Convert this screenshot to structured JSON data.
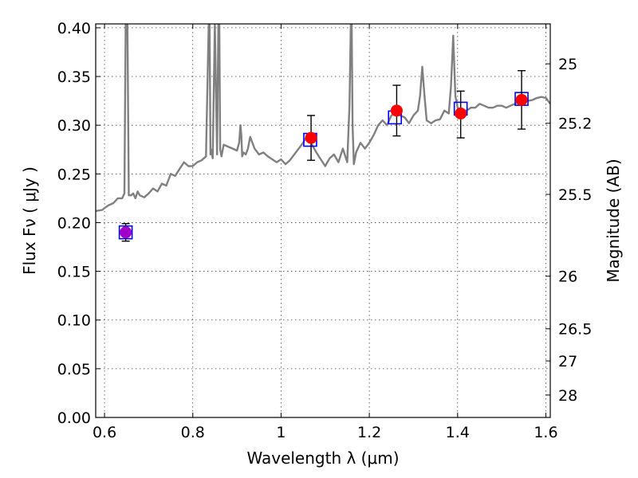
{
  "chart_data": {
    "type": "scatter",
    "xlabel": "Wavelength  λ (μm)",
    "ylabel": "Flux  Fν  ( μJy )",
    "y2label": "Magnitude (AB)",
    "xlim": [
      0.58,
      1.61
    ],
    "ylim": [
      0.0,
      0.404
    ],
    "grid": true,
    "x_ticks": [
      0.6,
      0.8,
      1.0,
      1.2,
      1.4,
      1.6
    ],
    "x_tick_labels": [
      "0.6",
      "0.8",
      "1",
      "1.2",
      "1.4",
      "1.6"
    ],
    "y_ticks": [
      0.0,
      0.05,
      0.1,
      0.15,
      0.2,
      0.25,
      0.3,
      0.35,
      0.4
    ],
    "y_tick_labels": [
      "0.00",
      "0.05",
      "0.10",
      "0.15",
      "0.20",
      "0.25",
      "0.30",
      "0.35",
      "0.40"
    ],
    "magnitude_ticks": [
      {
        "label": "25",
        "flux": 0.363
      },
      {
        "label": "25.2",
        "flux": 0.302
      },
      {
        "label": "25.5",
        "flux": 0.229
      },
      {
        "label": "26",
        "flux": 0.145
      },
      {
        "label": "26.5",
        "flux": 0.091
      },
      {
        "label": "27",
        "flux": 0.058
      },
      {
        "label": "28",
        "flux": 0.023
      }
    ],
    "series": [
      {
        "kind": "line",
        "color": "#808080",
        "x": [
          0.58,
          0.595,
          0.6,
          0.61,
          0.62,
          0.63,
          0.64,
          0.645,
          0.648,
          0.65,
          0.652,
          0.655,
          0.66,
          0.665,
          0.67,
          0.675,
          0.68,
          0.69,
          0.7,
          0.71,
          0.72,
          0.73,
          0.74,
          0.75,
          0.76,
          0.77,
          0.78,
          0.79,
          0.8,
          0.81,
          0.82,
          0.83,
          0.836,
          0.838,
          0.84,
          0.842,
          0.845,
          0.85,
          0.855,
          0.858,
          0.86,
          0.862,
          0.865,
          0.87,
          0.88,
          0.89,
          0.9,
          0.905,
          0.908,
          0.91,
          0.912,
          0.915,
          0.92,
          0.925,
          0.93,
          0.94,
          0.95,
          0.96,
          0.97,
          0.98,
          0.99,
          1.0,
          1.01,
          1.02,
          1.03,
          1.04,
          1.05,
          1.06,
          1.07,
          1.08,
          1.09,
          1.1,
          1.11,
          1.12,
          1.13,
          1.14,
          1.15,
          1.155,
          1.158,
          1.16,
          1.162,
          1.165,
          1.17,
          1.18,
          1.19,
          1.2,
          1.21,
          1.22,
          1.23,
          1.24,
          1.25,
          1.26,
          1.27,
          1.28,
          1.29,
          1.3,
          1.31,
          1.315,
          1.32,
          1.325,
          1.33,
          1.34,
          1.35,
          1.36,
          1.37,
          1.38,
          1.385,
          1.39,
          1.395,
          1.4,
          1.41,
          1.42,
          1.43,
          1.44,
          1.45,
          1.46,
          1.47,
          1.48,
          1.49,
          1.5,
          1.51,
          1.52,
          1.53,
          1.54,
          1.55,
          1.56,
          1.57,
          1.58,
          1.59,
          1.6,
          1.61
        ],
        "y": [
          0.212,
          0.213,
          0.215,
          0.218,
          0.22,
          0.225,
          0.225,
          0.23,
          0.404,
          0.404,
          0.404,
          0.228,
          0.228,
          0.23,
          0.225,
          0.232,
          0.228,
          0.226,
          0.23,
          0.235,
          0.232,
          0.24,
          0.238,
          0.25,
          0.248,
          0.255,
          0.262,
          0.258,
          0.258,
          0.262,
          0.264,
          0.268,
          0.404,
          0.404,
          0.27,
          0.275,
          0.266,
          0.404,
          0.27,
          0.404,
          0.404,
          0.275,
          0.268,
          0.28,
          0.278,
          0.276,
          0.274,
          0.282,
          0.3,
          0.29,
          0.268,
          0.272,
          0.27,
          0.276,
          0.288,
          0.276,
          0.27,
          0.272,
          0.268,
          0.265,
          0.262,
          0.265,
          0.26,
          0.264,
          0.27,
          0.276,
          0.282,
          0.29,
          0.28,
          0.272,
          0.265,
          0.258,
          0.266,
          0.27,
          0.262,
          0.276,
          0.262,
          0.32,
          0.404,
          0.404,
          0.3,
          0.26,
          0.272,
          0.282,
          0.276,
          0.282,
          0.29,
          0.3,
          0.305,
          0.3,
          0.31,
          0.312,
          0.31,
          0.308,
          0.302,
          0.31,
          0.315,
          0.33,
          0.36,
          0.33,
          0.305,
          0.302,
          0.305,
          0.306,
          0.315,
          0.312,
          0.34,
          0.392,
          0.33,
          0.318,
          0.315,
          0.315,
          0.318,
          0.318,
          0.322,
          0.32,
          0.318,
          0.318,
          0.32,
          0.32,
          0.318,
          0.32,
          0.322,
          0.324,
          0.325,
          0.325,
          0.326,
          0.328,
          0.329,
          0.328,
          0.322
        ]
      },
      {
        "kind": "squares",
        "color": "#0000ff",
        "points": [
          {
            "x": 0.648,
            "y": 0.19
          },
          {
            "x": 1.066,
            "y": 0.285
          },
          {
            "x": 1.258,
            "y": 0.308
          },
          {
            "x": 1.407,
            "y": 0.317
          },
          {
            "x": 1.545,
            "y": 0.327
          }
        ]
      },
      {
        "kind": "points_with_errors",
        "color": "#ff0000",
        "points": [
          {
            "x": 0.648,
            "y": 0.19,
            "ylow": 0.181,
            "yhigh": 0.199,
            "color": "#a000c8"
          },
          {
            "x": 1.068,
            "y": 0.287,
            "ylow": 0.264,
            "yhigh": 0.31,
            "color": "#ff0000"
          },
          {
            "x": 1.262,
            "y": 0.315,
            "ylow": 0.289,
            "yhigh": 0.341,
            "color": "#ff0000"
          },
          {
            "x": 1.407,
            "y": 0.312,
            "ylow": 0.287,
            "yhigh": 0.335,
            "color": "#ff0000"
          },
          {
            "x": 1.545,
            "y": 0.326,
            "ylow": 0.296,
            "yhigh": 0.356,
            "color": "#ff0000"
          }
        ]
      }
    ]
  }
}
